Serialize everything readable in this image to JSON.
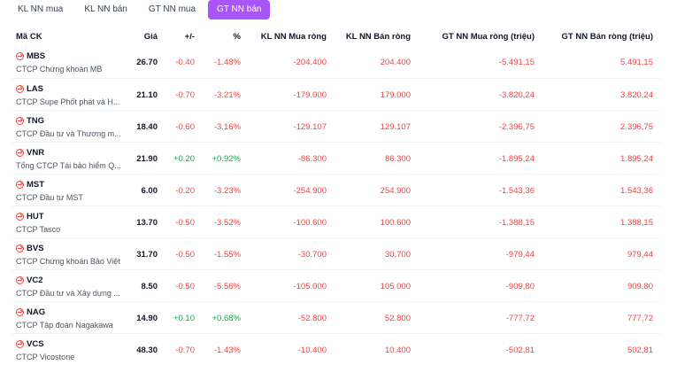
{
  "tabs": [
    {
      "label": "KL NN mua",
      "active": false
    },
    {
      "label": "KL NN bán",
      "active": false
    },
    {
      "label": "GT NN mua",
      "active": false
    },
    {
      "label": "GT NN bán",
      "active": true
    }
  ],
  "headers": {
    "symbol": "Mã CK",
    "price": "Giá",
    "change": "+/-",
    "pct": "%",
    "kl_buy": "KL NN Mua ròng",
    "kl_sell": "KL NN Bán ròng",
    "gt_buy": "GT NN Mua ròng (triệu)",
    "gt_sell": "GT NN Bán ròng (triệu)"
  },
  "rows": [
    {
      "symbol": "MBS",
      "name": "CTCP Chứng khoán MB",
      "price": "26.70",
      "change": "-0.40",
      "pct": "-1.48%",
      "kl_buy": "-204.400",
      "kl_sell": "204.400",
      "gt_buy": "-5.491,15",
      "gt_sell": "5.491,15",
      "dir": "down"
    },
    {
      "symbol": "LAS",
      "name": "CTCP Supe Phốt phát và H...",
      "price": "21.10",
      "change": "-0.70",
      "pct": "-3.21%",
      "kl_buy": "-179.000",
      "kl_sell": "179.000",
      "gt_buy": "-3.820,24",
      "gt_sell": "3.820,24",
      "dir": "down"
    },
    {
      "symbol": "TNG",
      "name": "CTCP Đầu tư và Thương m...",
      "price": "18.40",
      "change": "-0.60",
      "pct": "-3.16%",
      "kl_buy": "-129.107",
      "kl_sell": "129.107",
      "gt_buy": "-2.396,75",
      "gt_sell": "2.396,75",
      "dir": "down"
    },
    {
      "symbol": "VNR",
      "name": "Tổng CTCP Tái bảo hiểm Q...",
      "price": "21.90",
      "change": "+0.20",
      "pct": "+0.92%",
      "kl_buy": "-86.300",
      "kl_sell": "86.300",
      "gt_buy": "-1.895,24",
      "gt_sell": "1.895,24",
      "dir": "up"
    },
    {
      "symbol": "MST",
      "name": "CTCP Đầu tư MST",
      "price": "6.00",
      "change": "-0.20",
      "pct": "-3.23%",
      "kl_buy": "-254.900",
      "kl_sell": "254.900",
      "gt_buy": "-1.543,36",
      "gt_sell": "1.543,36",
      "dir": "down"
    },
    {
      "symbol": "HUT",
      "name": "CTCP Tasco",
      "price": "13.70",
      "change": "-0.50",
      "pct": "-3.52%",
      "kl_buy": "-100.600",
      "kl_sell": "100.600",
      "gt_buy": "-1.388,15",
      "gt_sell": "1.388,15",
      "dir": "down"
    },
    {
      "symbol": "BVS",
      "name": "CTCP Chứng khoán Bảo Việt",
      "price": "31.70",
      "change": "-0.50",
      "pct": "-1.55%",
      "kl_buy": "-30.700",
      "kl_sell": "30.700",
      "gt_buy": "-979,44",
      "gt_sell": "979,44",
      "dir": "down"
    },
    {
      "symbol": "VC2",
      "name": "CTCP Đầu tư và Xây dựng ...",
      "price": "8.50",
      "change": "-0.50",
      "pct": "-5.56%",
      "kl_buy": "-105.000",
      "kl_sell": "105.000",
      "gt_buy": "-909,80",
      "gt_sell": "909,80",
      "dir": "down"
    },
    {
      "symbol": "NAG",
      "name": "CTCP Tập đoàn Nagakawa",
      "price": "14.90",
      "change": "+0.10",
      "pct": "+0.68%",
      "kl_buy": "-52.800",
      "kl_sell": "52.800",
      "gt_buy": "-777,72",
      "gt_sell": "777,72",
      "dir": "up"
    },
    {
      "symbol": "VCS",
      "name": "CTCP Vicostone",
      "price": "48.30",
      "change": "-0.70",
      "pct": "-1.43%",
      "kl_buy": "-10.400",
      "kl_sell": "10.400",
      "gt_buy": "-502,81",
      "gt_sell": "502,81",
      "dir": "down"
    }
  ],
  "colors": {
    "accent": "#a855f7",
    "down": "#ef4444",
    "up": "#16a34a"
  }
}
